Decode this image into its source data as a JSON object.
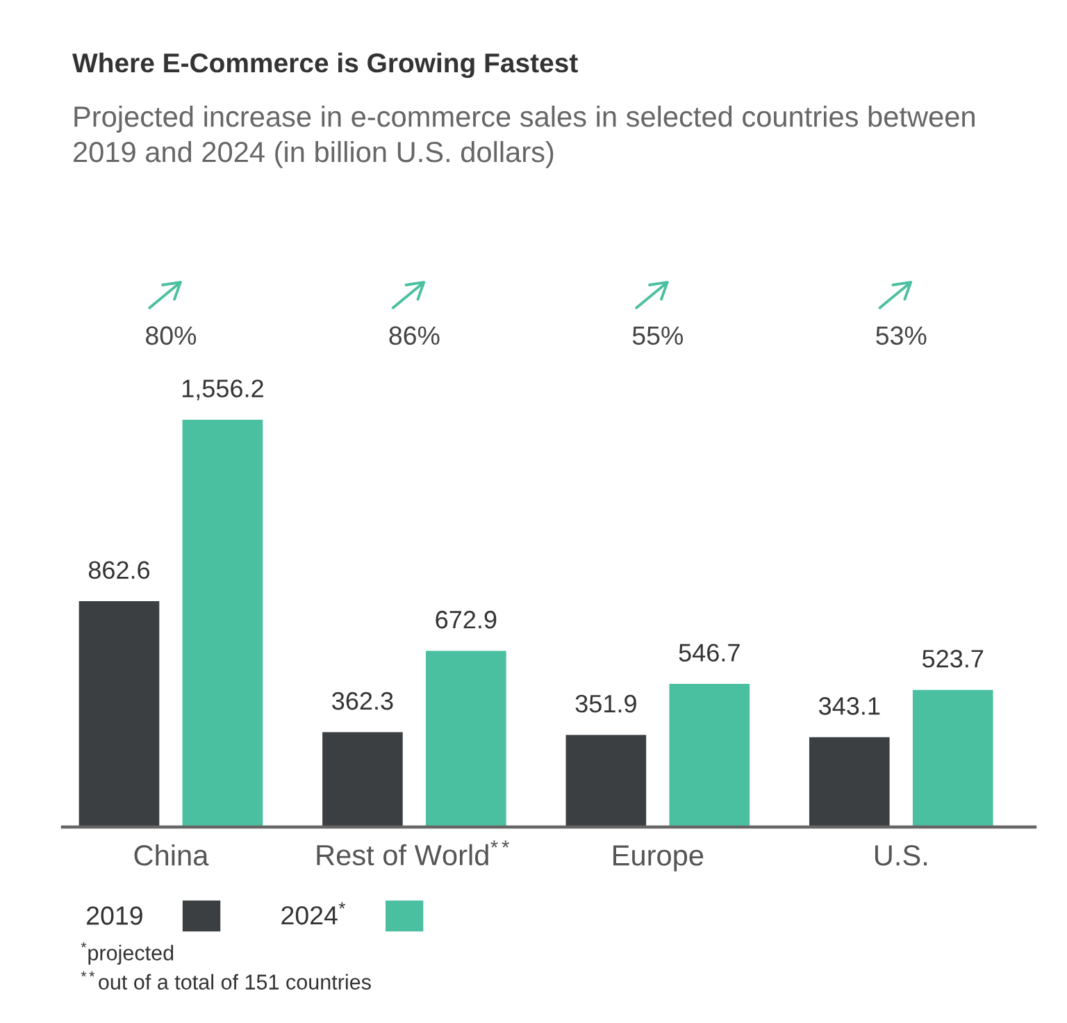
{
  "chart_data": {
    "type": "bar",
    "title": "Where E-Commerce is Growing Fastest",
    "subtitle": "Projected increase in e-commerce sales in selected countries between 2019 and 2024 (in billion U.S. dollars)",
    "categories": [
      "China",
      "Rest of World$^{**}$",
      "Europe",
      "U.S."
    ],
    "series": [
      {
        "name": "2019",
        "color": "#3b3f42",
        "values": [
          862.6,
          362.3,
          351.9,
          343.1
        ],
        "value_labels": [
          "862.6",
          "362.3",
          "351.9",
          "343.1"
        ]
      },
      {
        "name": "2024$^{*}$",
        "color": "#4bc0a0",
        "values": [
          1556.2,
          672.9,
          546.7,
          523.7
        ],
        "value_labels": [
          "1,556.2",
          "672.9",
          "546.7",
          "523.7"
        ]
      }
    ],
    "tick_labels": "x",
    "legend": "bottom left",
    "annotations": [
      "80%",
      "86%",
      "55%",
      "53%",
      "$^{*}$projected",
      "$^{**}$out of a total of 151 countries"
    ]
  }
}
